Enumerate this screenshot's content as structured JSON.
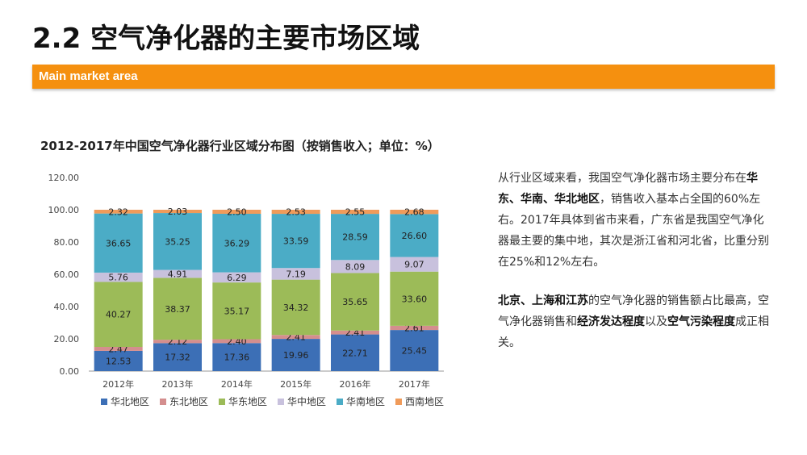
{
  "header": {
    "title": "2.2 空气净化器的主要市场区域",
    "banner_label": "Main market area"
  },
  "colors": {
    "banner": "#f5900f",
    "series": [
      "#3c6fb6",
      "#d48e8e",
      "#9cbb58",
      "#c8c1dd",
      "#4bacc6",
      "#f09b5a"
    ]
  },
  "chart_data": {
    "type": "bar",
    "stacked": true,
    "title": "2012-2017年中国空气净化器行业区域分布图（按销售收入；单位：%）",
    "categories": [
      "2012年",
      "2013年",
      "2014年",
      "2015年",
      "2016年",
      "2017年"
    ],
    "ylim": [
      0,
      120
    ],
    "yticks": [
      "0.00",
      "20.00",
      "40.00",
      "60.00",
      "80.00",
      "100.00",
      "120.00"
    ],
    "legend_position": "bottom",
    "series": [
      {
        "name": "华北地区",
        "values": [
          12.53,
          17.32,
          17.36,
          19.96,
          22.71,
          25.45
        ],
        "labels": [
          "12.53",
          "17.32",
          "17.36",
          "19.96",
          "22.71",
          "25.45"
        ]
      },
      {
        "name": "东北地区",
        "values": [
          2.47,
          2.12,
          2.4,
          2.41,
          2.41,
          2.61
        ],
        "labels": [
          "2.47",
          "2.12",
          "2.40",
          "2.41",
          "2.41",
          "2.61"
        ]
      },
      {
        "name": "华东地区",
        "values": [
          40.27,
          38.37,
          35.17,
          34.32,
          35.65,
          33.6
        ],
        "labels": [
          "40.27",
          "38.37",
          "35.17",
          "34.32",
          "35.65",
          "33.60"
        ]
      },
      {
        "name": "华中地区",
        "values": [
          5.76,
          4.91,
          6.29,
          7.19,
          8.09,
          9.07
        ],
        "labels": [
          "5.76",
          "4.91",
          "6.29",
          "7.19",
          "8.09",
          "9.07"
        ]
      },
      {
        "name": "华南地区",
        "values": [
          36.65,
          35.25,
          36.29,
          33.59,
          28.59,
          26.6
        ],
        "labels": [
          "36.65",
          "35.25",
          "36.29",
          "33.59",
          "28.59",
          "26.60"
        ]
      },
      {
        "name": "西南地区",
        "values": [
          2.32,
          2.03,
          2.5,
          2.53,
          2.55,
          2.68
        ],
        "labels": [
          "2.32",
          "2.03",
          "2.50",
          "2.53",
          "2.55",
          "2.68"
        ]
      }
    ]
  },
  "text": {
    "para1": [
      {
        "t": "从行业区域来看，我国空气净化器市场主要分布",
        "b": false
      },
      {
        "t": "在",
        "b": false
      },
      {
        "t": "华东、华南、华北地区",
        "b": true
      },
      {
        "t": "，销售收入基本占全国的60%左右。2017年具体到省市来看，广东省是我国空气净化器最主要的集中地，其次是浙江省和河北省，比重分别在25%和12%左右。",
        "b": false
      }
    ],
    "para2": [
      {
        "t": "北京、上海和江苏",
        "b": true
      },
      {
        "t": "的空气净化器的销售额占比最高，空气净化器销售和",
        "b": false
      },
      {
        "t": "经济发达程度",
        "b": true
      },
      {
        "t": "以及",
        "b": false
      },
      {
        "t": "空气污染程度",
        "b": true
      },
      {
        "t": "成正相关。",
        "b": false
      }
    ]
  }
}
